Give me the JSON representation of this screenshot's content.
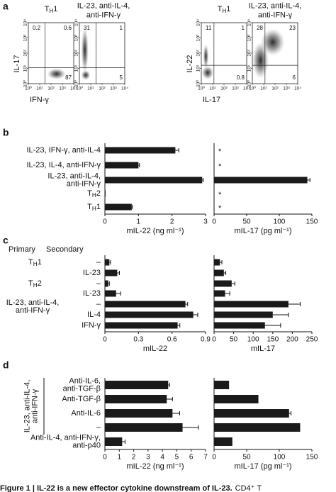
{
  "panel_letters": [
    "a",
    "b",
    "c",
    "d"
  ],
  "caption": {
    "bold": "Figure 1 | IL-22 is a new effector cytokine downstream of IL-23.",
    "text": "CD4⁺ T"
  },
  "chart_data": [
    {
      "type": "flow",
      "title": "TH1",
      "ylabel": "IL-17",
      "xlabel": "IFN-γ",
      "log": true,
      "xlim": [
        1,
        10000
      ],
      "ylim": [
        1,
        10000
      ],
      "xticks": [
        {
          "value": 1,
          "label": "10⁰"
        },
        {
          "value": 10,
          "label": "10¹"
        },
        {
          "value": 100,
          "label": "10²"
        },
        {
          "value": 1000,
          "label": "10³"
        },
        {
          "value": 10000,
          "label": "10⁴"
        }
      ],
      "yticks": [
        {
          "value": 1,
          "label": "10⁰"
        },
        {
          "value": 10,
          "label": "10¹"
        },
        {
          "value": 100,
          "label": "10²"
        },
        {
          "value": 1000,
          "label": "10³"
        },
        {
          "value": 10000,
          "label": "10⁴"
        }
      ],
      "gate": {
        "x": 30,
        "y": 11
      },
      "quadrants": {
        "upper_left": 0.2,
        "upper_right": 0.6,
        "lower_right": 87
      }
    },
    {
      "type": "flow",
      "title": [
        "IL-23, anti-IL-4,",
        "anti-IFN-γ"
      ],
      "log": true,
      "xlim": [
        1,
        10000
      ],
      "ylim": [
        1,
        10000
      ],
      "xticks": [
        {
          "value": 1,
          "label": "10⁰"
        },
        {
          "value": 10,
          "label": "10¹"
        },
        {
          "value": 100,
          "label": "10²"
        },
        {
          "value": 1000,
          "label": "10³"
        },
        {
          "value": 10000,
          "label": "10⁴"
        }
      ],
      "yticks": [
        {
          "value": 1,
          "label": "10⁰"
        },
        {
          "value": 10,
          "label": "10¹"
        },
        {
          "value": 100,
          "label": "10²"
        },
        {
          "value": 1000,
          "label": "10³"
        },
        {
          "value": 10000,
          "label": "10⁴"
        }
      ],
      "gate": {
        "x": 30,
        "y": 11
      },
      "quadrants": {
        "upper_left": 31,
        "upper_right": 1,
        "lower_right": 5
      }
    },
    {
      "type": "flow",
      "title": "TH1",
      "ylabel": "IL-22",
      "xlabel": "IL-17",
      "log": true,
      "xlim": [
        1,
        10000
      ],
      "ylim": [
        1,
        10000
      ],
      "xticks": [
        {
          "value": 1,
          "label": "10⁰"
        },
        {
          "value": 10,
          "label": "10¹"
        },
        {
          "value": 100,
          "label": "10²"
        },
        {
          "value": 1000,
          "label": "10³"
        },
        {
          "value": 10000,
          "label": "10⁴"
        }
      ],
      "yticks": [
        {
          "value": 1,
          "label": "10⁰"
        },
        {
          "value": 10,
          "label": "10¹"
        },
        {
          "value": 100,
          "label": "10²"
        },
        {
          "value": 1000,
          "label": "10³"
        },
        {
          "value": 10000,
          "label": "10⁴"
        }
      ],
      "gate": {
        "x": 13,
        "y": 16
      },
      "quadrants": {
        "upper_left": 11,
        "upper_right": 1,
        "lower_right": 0.8
      }
    },
    {
      "type": "flow",
      "title": [
        "IL-23, anti-IL-4,",
        "anti-IFN-γ"
      ],
      "log": true,
      "xlim": [
        1,
        10000
      ],
      "ylim": [
        1,
        10000
      ],
      "xticks": [
        {
          "value": 1,
          "label": "10⁰"
        },
        {
          "value": 10,
          "label": "10¹"
        },
        {
          "value": 100,
          "label": "10²"
        },
        {
          "value": 1000,
          "label": "10³"
        },
        {
          "value": 10000,
          "label": "10⁴"
        }
      ],
      "yticks": [
        {
          "value": 1,
          "label": "10⁰"
        },
        {
          "value": 10,
          "label": "10¹"
        },
        {
          "value": 100,
          "label": "10²"
        },
        {
          "value": 1000,
          "label": "10³"
        },
        {
          "value": 10000,
          "label": "10⁴"
        }
      ],
      "gate": {
        "x": 13,
        "y": 16
      },
      "quadrants": {
        "upper_left": 28,
        "upper_right": 23,
        "lower_right": 6
      }
    },
    {
      "type": "bar",
      "orientation": "horizontal",
      "color": "#1a1a1a",
      "categories": [
        "IL-23, IFN-γ, anti-IL-4",
        "IL-23, IL-4, anti-IFN-γ",
        [
          "IL-23, anti-IL-4,",
          "anti-IFN-γ"
        ],
        "TH2",
        "TH1"
      ],
      "panels": [
        {
          "xlabel": "mIL-22 (ng ml⁻¹)",
          "xlim": [
            0,
            3
          ],
          "xticks": [
            0,
            1,
            2,
            3
          ],
          "values": [
            2.1,
            1.0,
            2.9,
            0.02,
            0.8
          ],
          "errors": [
            0.1,
            0.03,
            0.03,
            null,
            0.02
          ]
        },
        {
          "xlabel": "mIL-17 (pg ml⁻¹)",
          "xlim": [
            0,
            150
          ],
          "xticks": [
            0,
            50,
            100,
            150
          ],
          "values": [
            null,
            null,
            143,
            null,
            null
          ],
          "errors": [
            null,
            null,
            4,
            null,
            null
          ],
          "value_labels": [
            "*",
            "*",
            null,
            "*",
            "*"
          ]
        }
      ]
    },
    {
      "type": "bar",
      "orientation": "horizontal",
      "color": "#1a1a1a",
      "column_headers": [
        "Primary",
        "Secondary"
      ],
      "primary": [
        "TH1",
        null,
        "TH2",
        null,
        [
          "IL-23, anti-IL-4,",
          "anti-IFN-γ"
        ],
        null,
        null
      ],
      "categories": [
        "–",
        "IL-23",
        "–",
        "IL-23",
        "–",
        "IL-4",
        "IFN-γ"
      ],
      "panels": [
        {
          "xlabel": "mIL-22",
          "xlim": [
            0,
            0.9
          ],
          "xticks": [
            0,
            0.3,
            0.6,
            0.9
          ],
          "values": [
            0.04,
            0.11,
            0.03,
            0.1,
            0.72,
            0.79,
            0.65
          ],
          "errors": [
            0.01,
            0.02,
            0.01,
            0.04,
            0.02,
            0.04,
            0.02
          ]
        },
        {
          "xlabel": "mIL-17",
          "xlim": [
            0,
            250
          ],
          "xticks": [
            0,
            50,
            100,
            150,
            200,
            250
          ],
          "values": [
            15,
            25,
            45,
            28,
            190,
            150,
            130
          ],
          "errors": [
            5,
            5,
            8,
            12,
            30,
            40,
            40
          ]
        }
      ]
    },
    {
      "type": "bar",
      "orientation": "horizontal",
      "color": "#1a1a1a",
      "group_label": [
        "IL-23, anti-IL-4,",
        "anti-IFN-γ"
      ],
      "categories": [
        [
          "Anti-IL-6,",
          "anti-TGF-β"
        ],
        "Anti-TGF-β",
        "Anti-IL-6",
        "–",
        [
          "Anti-IL-4, anti-IFN-γ,",
          "anti-p40"
        ]
      ],
      "panels": [
        {
          "xlabel": "mIL-22 (ng ml⁻¹)",
          "xlim": [
            0,
            7
          ],
          "xticks": [
            0,
            1,
            2,
            3,
            4,
            5,
            6,
            7
          ],
          "values": [
            4.4,
            4.3,
            4.7,
            5.4,
            1.2
          ],
          "errors": [
            0.1,
            0.4,
            0.5,
            1.1,
            0.2
          ]
        },
        {
          "xlabel": "mIL-17 (pg ml⁻¹)",
          "xlim": [
            0,
            150
          ],
          "xticks": [
            0,
            50,
            100,
            150
          ],
          "values": [
            23,
            68,
            115,
            132,
            28
          ],
          "errors": [
            null,
            null,
            3,
            null,
            null
          ]
        }
      ]
    }
  ]
}
